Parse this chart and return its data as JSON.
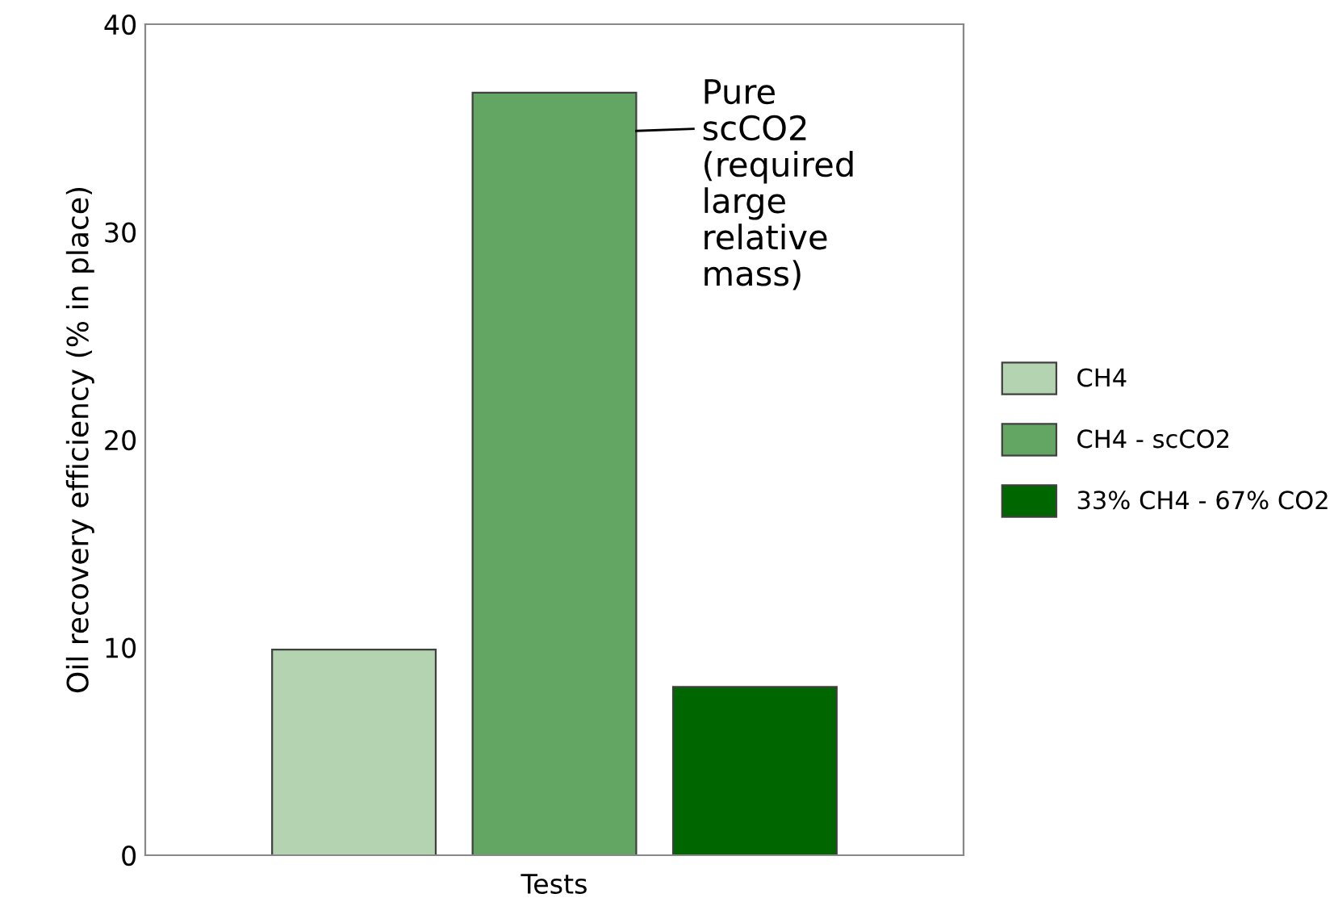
{
  "chart_data": {
    "type": "bar",
    "ylabel": "Oil recovery efficiency (% in place)",
    "categories": [
      "Tests"
    ],
    "series": [
      {
        "name": "CH4",
        "color": "#b3d3b1",
        "values": [
          9.9
        ]
      },
      {
        "name": "CH4 - scCO2",
        "color": "#63a663",
        "values": [
          36.7
        ]
      },
      {
        "name": "33% CH4 - 67% CO2",
        "color": "#006600",
        "values": [
          8.1
        ]
      }
    ],
    "ylim": [
      0,
      40
    ],
    "yticks": [
      0,
      10,
      20,
      30,
      40
    ],
    "grid": false,
    "legend": "right",
    "annotations": [
      "Pure\nscCO2\n(required\nlarge\nrelative\nmass)"
    ]
  }
}
